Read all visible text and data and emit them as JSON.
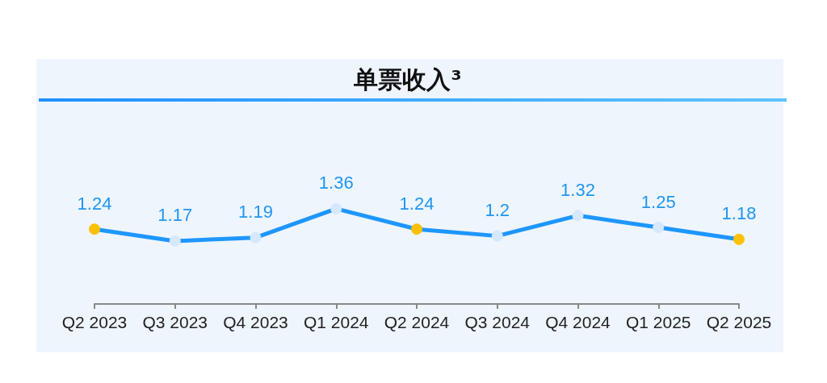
{
  "chart_data": {
    "type": "line",
    "title": "单票收入³",
    "categories": [
      "Q2 2023",
      "Q3 2023",
      "Q4 2023",
      "Q1 2024",
      "Q2 2024",
      "Q3 2024",
      "Q4 2024",
      "Q1 2025",
      "Q2 2025"
    ],
    "series": [
      {
        "color": "#1e96ff",
        "values": [
          1.24,
          1.17,
          1.19,
          1.36,
          1.24,
          1.2,
          1.32,
          1.25,
          1.18
        ],
        "colors": [
          "#ffc000",
          "#d6e8fb",
          "#d6e8fb",
          "#d6e8fb",
          "#ffc000",
          "#d6e8fb",
          "#d6e8fb",
          "#d6e8fb",
          "#ffc000"
        ]
      }
    ],
    "tick_labels": "x",
    "data_labels": true,
    "marker": "circle",
    "line_style": "solid",
    "grid": false
  }
}
